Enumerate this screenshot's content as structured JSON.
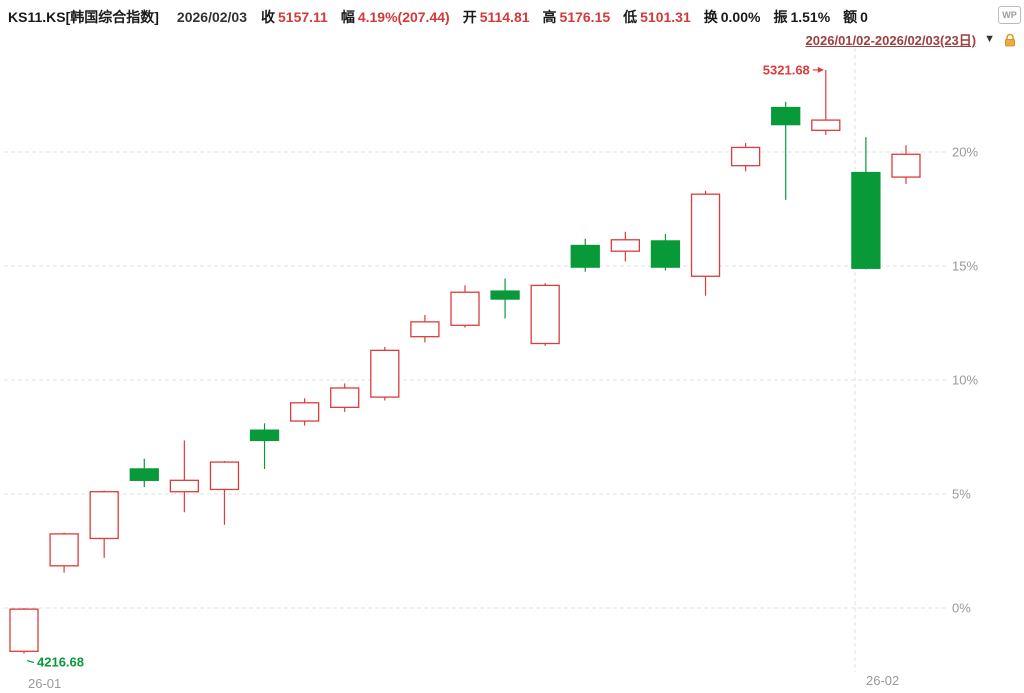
{
  "header": {
    "symbol": "KS11.KS[韩国综合指数]",
    "date": "2026/02/03",
    "fields": [
      {
        "label": "收",
        "value": "5157.11",
        "color": "#d43a3a"
      },
      {
        "label": "幅",
        "value": "4.19%(207.44)",
        "color": "#d43a3a"
      },
      {
        "label": "开",
        "value": "5114.81",
        "color": "#d43a3a"
      },
      {
        "label": "高",
        "value": "5176.15",
        "color": "#d43a3a"
      },
      {
        "label": "低",
        "value": "5101.31",
        "color": "#d43a3a"
      },
      {
        "label": "换",
        "value": "0.00%",
        "color": "#1a1a1a"
      },
      {
        "label": "振",
        "value": "1.51%",
        "color": "#1a1a1a"
      },
      {
        "label": "额",
        "value": "0",
        "color": "#1a1a1a"
      }
    ],
    "logo": "WP",
    "range": "2026/01/02-2026/02/03(23日)",
    "dropdown_glyph": "▼"
  },
  "chart_data": {
    "type": "candlestick",
    "unit": "percent_change",
    "y_axis": {
      "ticks": [
        20,
        15,
        10,
        5,
        0
      ],
      "suffix": "%"
    },
    "x_axis": {
      "labels": [
        "26-01",
        "26-02"
      ]
    },
    "colors": {
      "up": "#dc3c3c",
      "down": "#089939",
      "grid": "#e2e2e2",
      "axis_text": "#999999"
    },
    "candles": [
      {
        "o": -1.9,
        "h": 0.0,
        "l": -2.0,
        "c": -0.05
      },
      {
        "o": 1.85,
        "h": 3.3,
        "l": 1.55,
        "c": 3.25
      },
      {
        "o": 3.05,
        "h": 5.15,
        "l": 2.2,
        "c": 5.1
      },
      {
        "o": 6.1,
        "h": 6.55,
        "l": 5.3,
        "c": 5.6
      },
      {
        "o": 5.1,
        "h": 7.35,
        "l": 4.2,
        "c": 5.6
      },
      {
        "o": 5.2,
        "h": 6.45,
        "l": 3.65,
        "c": 6.4
      },
      {
        "o": 7.8,
        "h": 8.1,
        "l": 6.1,
        "c": 7.35
      },
      {
        "o": 8.2,
        "h": 9.2,
        "l": 8.0,
        "c": 9.0
      },
      {
        "o": 8.8,
        "h": 9.85,
        "l": 8.6,
        "c": 9.65
      },
      {
        "o": 9.25,
        "h": 11.45,
        "l": 9.1,
        "c": 11.3
      },
      {
        "o": 11.9,
        "h": 12.85,
        "l": 11.65,
        "c": 12.55
      },
      {
        "o": 12.4,
        "h": 14.15,
        "l": 12.3,
        "c": 13.85
      },
      {
        "o": 13.9,
        "h": 14.45,
        "l": 12.7,
        "c": 13.55
      },
      {
        "o": 11.6,
        "h": 14.25,
        "l": 11.5,
        "c": 14.15
      },
      {
        "o": 15.9,
        "h": 16.2,
        "l": 14.75,
        "c": 14.95
      },
      {
        "o": 15.65,
        "h": 16.5,
        "l": 15.2,
        "c": 16.15
      },
      {
        "o": 16.1,
        "h": 16.4,
        "l": 14.8,
        "c": 14.95
      },
      {
        "o": 14.55,
        "h": 18.3,
        "l": 13.7,
        "c": 18.15
      },
      {
        "o": 19.4,
        "h": 20.4,
        "l": 19.15,
        "c": 20.2
      },
      {
        "o": 21.95,
        "h": 22.2,
        "l": 17.9,
        "c": 21.2
      },
      {
        "o": 20.95,
        "h": 23.6,
        "l": 20.75,
        "c": 21.4
      },
      {
        "o": 19.1,
        "h": 20.65,
        "l": 14.85,
        "c": 14.9
      },
      {
        "o": 18.9,
        "h": 20.3,
        "l": 18.6,
        "c": 19.9
      }
    ],
    "annotations": [
      {
        "text": "5321.68",
        "candle_index": 20,
        "anchor": "high",
        "color_key": "up"
      },
      {
        "text": "4216.68",
        "candle_index": 0,
        "anchor": "low",
        "color_key": "down"
      }
    ]
  }
}
